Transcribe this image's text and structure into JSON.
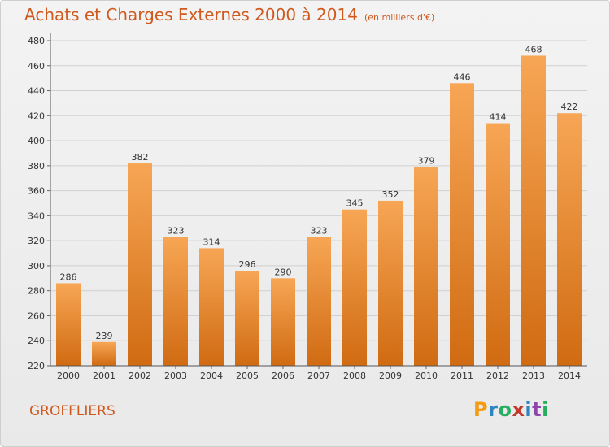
{
  "title": "Achats et Charges Externes 2000 à 2014",
  "unit": "(en milliers d'€)",
  "commune": "GROFFLIERS",
  "logo": "Proxiti",
  "chart_data": {
    "type": "bar",
    "title": "Achats et Charges Externes 2000 à 2014",
    "subtitle": "(en milliers d'€)",
    "categories": [
      "2000",
      "2001",
      "2002",
      "2003",
      "2004",
      "2005",
      "2006",
      "2007",
      "2008",
      "2009",
      "2010",
      "2011",
      "2012",
      "2013",
      "2014"
    ],
    "values": [
      286,
      239,
      382,
      323,
      314,
      296,
      290,
      323,
      345,
      352,
      379,
      446,
      414,
      468,
      422
    ],
    "ylim": [
      220,
      480
    ],
    "yticks": [
      220,
      240,
      260,
      280,
      300,
      320,
      340,
      360,
      380,
      400,
      420,
      440,
      460,
      480
    ],
    "grid": true,
    "colors": {
      "bar_top": "#f7a655",
      "bar_bottom": "#d06b12"
    }
  }
}
